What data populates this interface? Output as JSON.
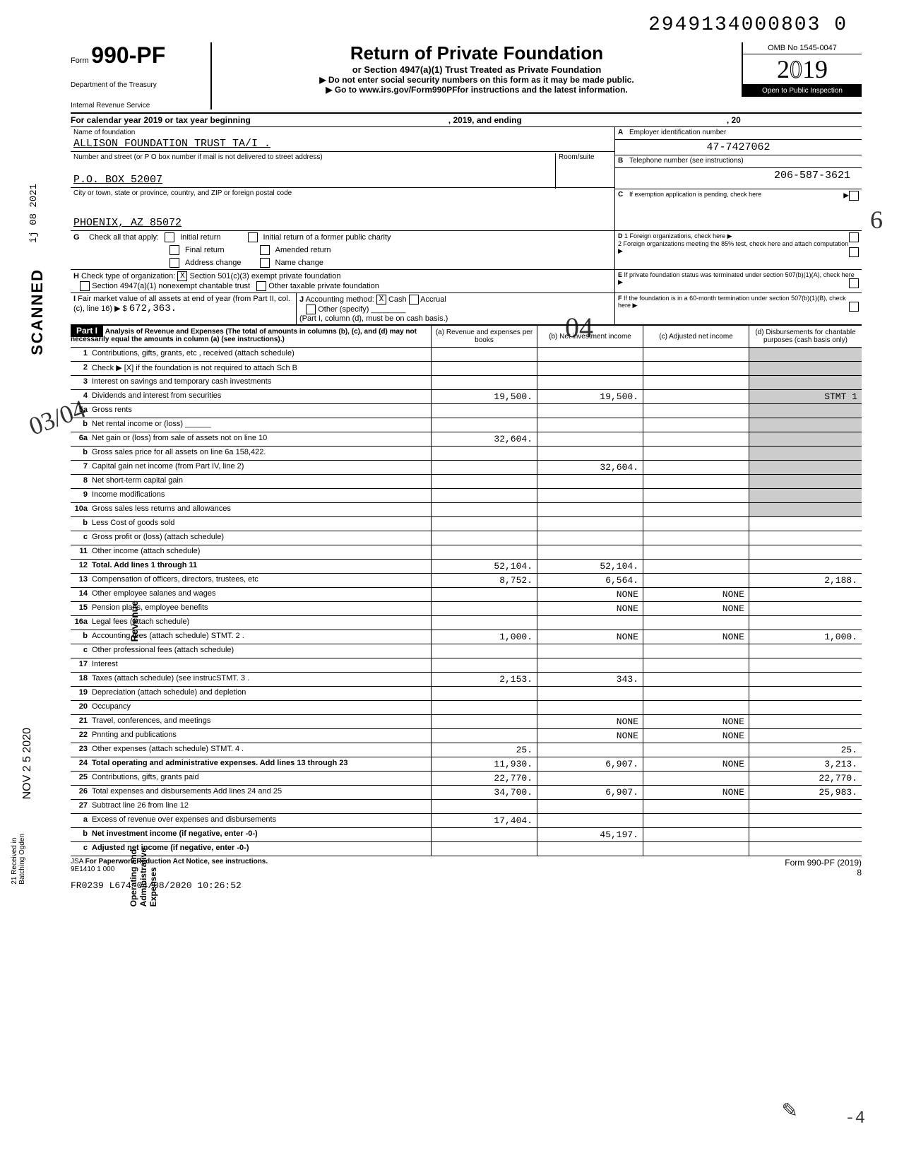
{
  "doc_id": "2949134000803 0",
  "form": {
    "prefix": "Form",
    "number": "990-PF",
    "dept1": "Department of the Treasury",
    "dept2": "Internal Revenue Service"
  },
  "title": {
    "main": "Return of Private Foundation",
    "sub": "or Section 4947(a)(1) Trust Treated as Private Foundation",
    "note1": "▶ Do not enter social security numbers on this form as it may be made public.",
    "note2": "▶ Go to www.irs.gov/Form990PFfor instructions and the latest information."
  },
  "yearbox": {
    "omb": "OMB No 1545-0047",
    "year": "2019",
    "inspect": "Open to Public Inspection"
  },
  "cal_year": {
    "label": "For calendar year 2019 or tax year beginning",
    "mid": ", 2019, and ending",
    "end": ", 20"
  },
  "foundation": {
    "name_label": "Name of foundation",
    "name": "ALLISON FOUNDATION TRUST TA/I .",
    "addr_label": "Number and street (or P O box number if mail is not delivered to street address)",
    "addr": "P.O. BOX 52007",
    "room_label": "Room/suite",
    "city_label": "City or town, state or province, country, and ZIP or foreign postal code",
    "city": "PHOENIX, AZ 85072"
  },
  "right_info": {
    "a_label": "Employer identification number",
    "a_val": "47-7427062",
    "b_label": "Telephone number (see instructions)",
    "b_val": "206-587-3621",
    "c_label": "If exemption application is pending, check here",
    "d1": "1 Foreign organizations, check here",
    "d2": "2 Foreign organizations meeting the 85% test, check here and attach computation",
    "e": "If private foundation status was terminated under section 507(b)(1)(A), check here",
    "f": "If the foundation is in a 60-month termination under section 507(b)(1)(B), check here"
  },
  "checks": {
    "g_label": "Check all that apply:",
    "g_opts": [
      "Initial return",
      "Final return",
      "Address change",
      "Initial return of a former public charity",
      "Amended return",
      "Name change"
    ],
    "h_label": "Check type of organization:",
    "h_opts": [
      "Section 501(c)(3) exempt private foundation",
      "Section 4947(a)(1) nonexempt chantable trust",
      "Other taxable private foundation"
    ],
    "h_checked": "X"
  },
  "fmv": {
    "i_label": "Fair market value of all assets at end of year (from Part II, col. (c), line 16) ▶ $",
    "i_val": "672,363.",
    "j_label": "Accounting method:",
    "j_cash": "Cash",
    "j_accrual": "Accrual",
    "j_other": "Other (specify)",
    "j_note": "(Part I, column (d), must be on cash basis.)",
    "j_checked": "X"
  },
  "part1": {
    "label": "Part I",
    "desc": "Analysis of Revenue and Expenses (The total of amounts in columns (b), (c), and (d) may not necessarily equal the amounts in column (a) (see instructions).)",
    "col_a": "(a) Revenue and expenses per books",
    "col_b": "(b) Net investment income",
    "col_c": "(c) Adjusted net income",
    "col_d": "(d) Disbursements for chantable purposes (cash basis only)"
  },
  "lines": [
    {
      "n": "1",
      "label": "Contributions, gifts, grants, etc , received (attach schedule)",
      "a": "",
      "b": "",
      "c": "",
      "d": ""
    },
    {
      "n": "2",
      "label": "Check ▶ [X] if the foundation is not required to attach Sch B",
      "a": "",
      "b": "",
      "c": "",
      "d": ""
    },
    {
      "n": "3",
      "label": "Interest on savings and temporary cash investments",
      "a": "",
      "b": "",
      "c": "",
      "d": ""
    },
    {
      "n": "4",
      "label": "Dividends and interest from securities",
      "a": "19,500.",
      "b": "19,500.",
      "c": "",
      "d": "STMT 1"
    },
    {
      "n": "5a",
      "label": "Gross rents",
      "a": "",
      "b": "",
      "c": "",
      "d": ""
    },
    {
      "n": "b",
      "label": "Net rental income or (loss) ______",
      "a": "",
      "b": "",
      "c": "",
      "d": ""
    },
    {
      "n": "6a",
      "label": "Net gain or (loss) from sale of assets not on line 10",
      "a": "32,604.",
      "b": "",
      "c": "",
      "d": ""
    },
    {
      "n": "b",
      "label": "Gross sales price for all assets on line 6a     158,422.",
      "a": "",
      "b": "",
      "c": "",
      "d": ""
    },
    {
      "n": "7",
      "label": "Capital gain net income (from Part IV, line 2)",
      "a": "",
      "b": "32,604.",
      "c": "",
      "d": ""
    },
    {
      "n": "8",
      "label": "Net short-term capital gain",
      "a": "",
      "b": "",
      "c": "",
      "d": ""
    },
    {
      "n": "9",
      "label": "Income modifications",
      "a": "",
      "b": "",
      "c": "",
      "d": ""
    },
    {
      "n": "10a",
      "label": "Gross sales less returns and allowances",
      "a": "",
      "b": "",
      "c": "",
      "d": ""
    },
    {
      "n": "b",
      "label": "Less Cost of goods sold",
      "a": "",
      "b": "",
      "c": "",
      "d": ""
    },
    {
      "n": "c",
      "label": "Gross profit or (loss) (attach schedule)",
      "a": "",
      "b": "",
      "c": "",
      "d": ""
    },
    {
      "n": "11",
      "label": "Other income (attach schedule)",
      "a": "",
      "b": "",
      "c": "",
      "d": ""
    },
    {
      "n": "12",
      "label": "Total. Add lines 1 through 11",
      "a": "52,104.",
      "b": "52,104.",
      "c": "",
      "d": "",
      "bold": true
    },
    {
      "n": "13",
      "label": "Compensation of officers, directors, trustees, etc",
      "a": "8,752.",
      "b": "6,564.",
      "c": "",
      "d": "2,188."
    },
    {
      "n": "14",
      "label": "Other employee salanes and wages",
      "a": "",
      "b": "NONE",
      "c": "NONE",
      "d": ""
    },
    {
      "n": "15",
      "label": "Pension plans, employee benefits",
      "a": "",
      "b": "NONE",
      "c": "NONE",
      "d": ""
    },
    {
      "n": "16a",
      "label": "Legal fees (attach schedule)",
      "a": "",
      "b": "",
      "c": "",
      "d": ""
    },
    {
      "n": "b",
      "label": "Accounting fees (attach schedule) STMT. 2 .",
      "a": "1,000.",
      "b": "NONE",
      "c": "NONE",
      "d": "1,000."
    },
    {
      "n": "c",
      "label": "Other professional fees (attach schedule)",
      "a": "",
      "b": "",
      "c": "",
      "d": ""
    },
    {
      "n": "17",
      "label": "Interest",
      "a": "",
      "b": "",
      "c": "",
      "d": ""
    },
    {
      "n": "18",
      "label": "Taxes (attach schedule) (see instrucSTMT. 3 .",
      "a": "2,153.",
      "b": "343.",
      "c": "",
      "d": ""
    },
    {
      "n": "19",
      "label": "Depreciation (attach schedule) and depletion",
      "a": "",
      "b": "",
      "c": "",
      "d": ""
    },
    {
      "n": "20",
      "label": "Occupancy",
      "a": "",
      "b": "",
      "c": "",
      "d": ""
    },
    {
      "n": "21",
      "label": "Travel, conferences, and meetings",
      "a": "",
      "b": "NONE",
      "c": "NONE",
      "d": ""
    },
    {
      "n": "22",
      "label": "Pnnting and publications",
      "a": "",
      "b": "NONE",
      "c": "NONE",
      "d": ""
    },
    {
      "n": "23",
      "label": "Other expenses (attach schedule) STMT. 4 .",
      "a": "25.",
      "b": "",
      "c": "",
      "d": "25."
    },
    {
      "n": "24",
      "label": "Total operating and administrative expenses. Add lines 13 through 23",
      "a": "11,930.",
      "b": "6,907.",
      "c": "NONE",
      "d": "3,213.",
      "bold": true
    },
    {
      "n": "25",
      "label": "Contributions, gifts, grants paid",
      "a": "22,770.",
      "b": "",
      "c": "",
      "d": "22,770."
    },
    {
      "n": "26",
      "label": "Total expenses and disbursements Add lines 24 and 25",
      "a": "34,700.",
      "b": "6,907.",
      "c": "NONE",
      "d": "25,983."
    },
    {
      "n": "27",
      "label": "Subtract line 26 from line 12",
      "a": "",
      "b": "",
      "c": "",
      "d": ""
    },
    {
      "n": "a",
      "label": "Excess of revenue over expenses and disbursements",
      "a": "17,404.",
      "b": "",
      "c": "",
      "d": ""
    },
    {
      "n": "b",
      "label": "Net investment income (if negative, enter -0-)",
      "a": "",
      "b": "45,197.",
      "c": "",
      "d": "",
      "bold": true
    },
    {
      "n": "c",
      "label": "Adjusted net income (if negative, enter -0-)",
      "a": "",
      "b": "",
      "c": "",
      "d": "",
      "bold": true
    }
  ],
  "footer": {
    "jsa": "JSA",
    "paperwork": "For Paperwork Reduction Act Notice, see instructions.",
    "code1": "9E1410 1 000",
    "code2": "FR0239 L674 04/08/2020 10:26:52",
    "form_ref": "Form 990-PF (2019)",
    "page": "8"
  },
  "side": {
    "scanned": "SCANNED",
    "date1": "ij 08 2021",
    "date2": "NOV 2 5 2020",
    "stamp1": "21 Received in",
    "stamp2": "Batching Ogden"
  },
  "vert": {
    "revenue": "Revenue",
    "opex": "Operating and Administrative Expenses"
  },
  "handwrite": {
    "h1": "03/04",
    "h2": "6",
    "h3": "",
    "h4": "-4",
    "h5": "04"
  }
}
